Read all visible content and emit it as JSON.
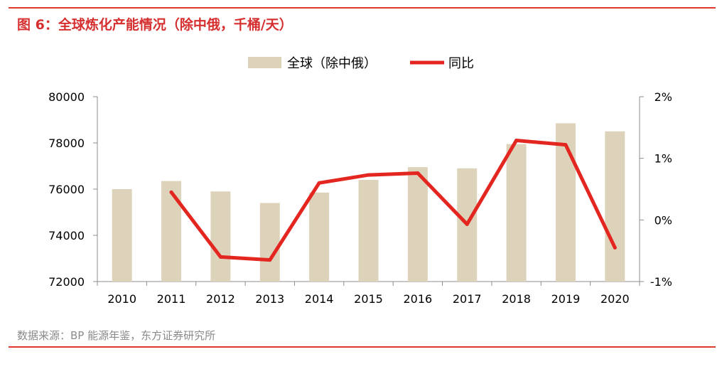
{
  "figure": {
    "title": "图 6：全球炼化产能情况（除中俄，千桶/天）",
    "source": "数据来源：BP 能源年鉴，东方证券研究所"
  },
  "chart_data": {
    "type": "bar+line",
    "categories": [
      "2010",
      "2011",
      "2012",
      "2013",
      "2014",
      "2015",
      "2016",
      "2017",
      "2018",
      "2019",
      "2020"
    ],
    "series": [
      {
        "name": "全球（除中俄）",
        "type": "bar",
        "axis": "left",
        "color": "#ddd3bb",
        "values": [
          76000,
          76350,
          75900,
          75400,
          75850,
          76400,
          76950,
          76900,
          77950,
          78850,
          78500
        ]
      },
      {
        "name": "同比",
        "type": "line",
        "axis": "right",
        "color": "#e3261f",
        "values": [
          null,
          0.45,
          -0.6,
          -0.65,
          0.6,
          0.73,
          0.76,
          -0.07,
          1.29,
          1.22,
          -0.45
        ]
      }
    ],
    "y_left": {
      "min": 72000,
      "max": 80000,
      "ticks": [
        "72000",
        "74000",
        "76000",
        "78000",
        "80000"
      ]
    },
    "y_right": {
      "min": -1,
      "max": 2,
      "unit": "%",
      "ticks": [
        "-1%",
        "0%",
        "1%",
        "2%"
      ]
    },
    "legend_position": "top-center",
    "grid": false
  }
}
